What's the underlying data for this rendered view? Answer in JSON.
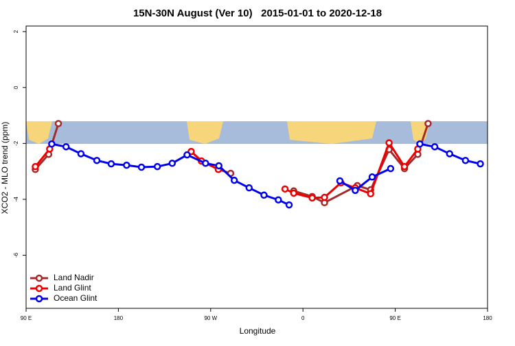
{
  "chart_data": {
    "type": "line",
    "title": "15N-30N August (Ver 10)   2015-01-01 to 2020-12-18",
    "xlabel": "Longitude",
    "ylabel": "XCO2 - MLO trend (ppm)",
    "xlim": [
      90,
      540
    ],
    "ylim": [
      -7.9,
      2.2
    ],
    "xticks": [
      {
        "value": 90,
        "label": "90 E"
      },
      {
        "value": 180,
        "label": "180"
      },
      {
        "value": 270,
        "label": "90 W"
      },
      {
        "value": 360,
        "label": "0"
      },
      {
        "value": 450,
        "label": "90 E"
      },
      {
        "value": 540,
        "label": "180"
      }
    ],
    "yticks": [
      2,
      0,
      -2,
      -4,
      -6
    ],
    "legend": "bottom-left",
    "series": [
      {
        "name": "Land Nadir",
        "color": "#a52a2a",
        "x": [
          99,
          112,
          121.5,
          null,
          251,
          261,
          277.5,
          289.5,
          null,
          351,
          369,
          381,
          413,
          426,
          444,
          459,
          472,
          482
        ],
        "values": [
          -2.93,
          -2.39,
          -1.29,
          null,
          -2.29,
          -2.63,
          -2.93,
          -3.07,
          null,
          -3.7,
          -3.9,
          -4.12,
          -3.51,
          -3.66,
          -2.22,
          -2.9,
          -2.39,
          -1.29
        ]
      },
      {
        "name": "Land Glint",
        "color": "#ee0000",
        "x": [
          99,
          113,
          null,
          251,
          261,
          277.5,
          null,
          342.5,
          351,
          369,
          381,
          397,
          411,
          426,
          444,
          459,
          472
        ],
        "values": [
          -2.83,
          -2.2,
          null,
          -2.29,
          -2.63,
          -2.93,
          null,
          -3.63,
          -3.78,
          -3.95,
          -3.93,
          -3.41,
          -3.59,
          -3.8,
          -1.98,
          -2.83,
          -2.2
        ]
      },
      {
        "name": "Ocean Glint",
        "color": "#0000ee",
        "x": [
          115,
          129,
          143.5,
          159,
          173,
          188,
          202.5,
          218,
          232.5,
          247,
          265,
          278,
          293,
          307.5,
          322,
          336,
          346.5,
          null,
          396,
          411,
          427.5,
          445.5,
          null,
          474,
          488.5,
          503,
          518.5,
          533
        ],
        "values": [
          -2.02,
          -2.12,
          -2.37,
          -2.61,
          -2.73,
          -2.78,
          -2.85,
          -2.83,
          -2.71,
          -2.41,
          -2.71,
          -2.8,
          -3.32,
          -3.59,
          -3.85,
          -4.02,
          -4.2,
          null,
          -3.34,
          -3.68,
          -3.2,
          -2.9,
          null,
          -2.02,
          -2.12,
          -2.37,
          -2.61,
          -2.73
        ]
      }
    ]
  }
}
